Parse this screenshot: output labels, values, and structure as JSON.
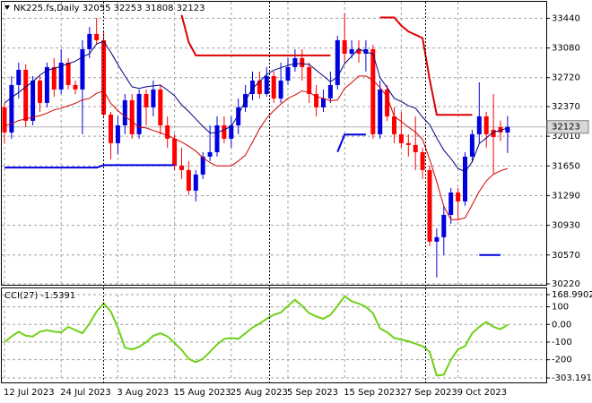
{
  "chart_data": [
    {
      "type": "candlestick",
      "title": "NK225.fs,Daily 32055 32253 31808 32123",
      "categories": [
        "12 Jul 2023",
        null,
        null,
        null,
        null,
        null,
        null,
        null,
        "24 Jul 2023",
        null,
        null,
        null,
        null,
        null,
        null,
        null,
        "3 Aug 2023",
        null,
        null,
        null,
        null,
        null,
        null,
        null,
        "15 Aug 2023",
        null,
        null,
        null,
        null,
        null,
        null,
        null,
        "25 Aug 2023",
        null,
        null,
        null,
        null,
        null,
        null,
        null,
        "5 Sep 2023",
        null,
        null,
        null,
        null,
        null,
        null,
        null,
        "15 Sep 2023",
        null,
        null,
        null,
        null,
        null,
        null,
        null,
        "27 Sep 2023",
        null,
        null,
        null,
        null,
        null,
        null,
        null,
        "9 Oct 2023",
        null,
        null,
        null,
        null,
        null,
        null,
        null
      ],
      "open": [
        32360,
        32056,
        32631,
        32815,
        32197,
        32685,
        32414,
        32848,
        32577,
        32902,
        32631,
        32577,
        33065,
        33250,
        33174,
        32273,
        31926,
        32142,
        32446,
        32034,
        32522,
        32360,
        32577,
        32142,
        31980,
        31654,
        31600,
        31350,
        31546,
        31763,
        31817,
        32142,
        31980,
        32142,
        32360,
        32522,
        32685,
        32522,
        32739,
        32468,
        32685,
        32848,
        32957,
        32848,
        32522,
        32360,
        32468,
        32631,
        33174,
        33011,
        33065,
        33011,
        33065,
        32034,
        32577,
        32251,
        32034,
        31926,
        31904,
        31817,
        31600,
        30732,
        30786,
        31057,
        31328,
        31220,
        31763,
        32034,
        32251,
        32088,
        32120,
        32055
      ],
      "high": [
        32414,
        32739,
        32902,
        32881,
        32739,
        32739,
        32902,
        32957,
        33065,
        32957,
        32685,
        33174,
        33336,
        33445,
        33282,
        32305,
        32251,
        32522,
        32522,
        32577,
        32577,
        32685,
        32631,
        32251,
        32034,
        31871,
        31708,
        31600,
        31817,
        32142,
        32251,
        32251,
        32251,
        32468,
        32631,
        32794,
        32794,
        32848,
        32794,
        32902,
        32957,
        33065,
        33065,
        32902,
        32631,
        32577,
        32794,
        33228,
        33499,
        33174,
        33174,
        33174,
        33119,
        32685,
        32631,
        32360,
        32305,
        32034,
        32251,
        31871,
        31654,
        30894,
        31166,
        31383,
        31383,
        31817,
        32088,
        32663,
        32305,
        32522,
        32200,
        32253
      ],
      "low": [
        31926,
        31980,
        32468,
        32121,
        32142,
        32305,
        32360,
        32490,
        32522,
        32577,
        32522,
        32034,
        32957,
        33119,
        32251,
        31730,
        31795,
        32034,
        31980,
        31980,
        32142,
        32251,
        32034,
        31871,
        31600,
        31491,
        31296,
        31220,
        31491,
        31708,
        31763,
        31926,
        31871,
        32034,
        32305,
        32446,
        32468,
        32490,
        32414,
        32414,
        32631,
        32794,
        32685,
        32414,
        32251,
        32305,
        32414,
        32577,
        32902,
        32957,
        32902,
        32794,
        31980,
        31980,
        32197,
        31926,
        31871,
        31763,
        31600,
        31491,
        30677,
        30297,
        30568,
        30949,
        31003,
        31166,
        31708,
        31926,
        31871,
        31546,
        31950,
        31808
      ],
      "close": [
        32056,
        32631,
        32815,
        32197,
        32685,
        32414,
        32848,
        32577,
        32902,
        32631,
        32577,
        33065,
        33250,
        33174,
        32273,
        31926,
        32142,
        32446,
        32034,
        32522,
        32360,
        32577,
        32142,
        31980,
        31654,
        31600,
        31350,
        31546,
        31763,
        31817,
        32142,
        31980,
        32142,
        32360,
        32522,
        32685,
        32522,
        32739,
        32468,
        32685,
        32848,
        32957,
        32848,
        32522,
        32360,
        32468,
        32631,
        33174,
        33011,
        33065,
        33011,
        33065,
        32034,
        32577,
        32251,
        32034,
        31926,
        31904,
        31817,
        31600,
        30732,
        30786,
        31057,
        31328,
        31220,
        31763,
        32034,
        32251,
        32034,
        32000,
        32055,
        32123
      ],
      "up_color": "#0000e0",
      "down_color": "#ff0000",
      "ma_lines": [
        {
          "color": "#00007f",
          "values": [
            32410,
            32480,
            32540,
            32610,
            32670,
            32750,
            32810,
            32830,
            32860,
            32890,
            32920,
            32970,
            33010,
            33130,
            33160,
            33030,
            32880,
            32740,
            32610,
            32590,
            32610,
            32620,
            32630,
            32570,
            32500,
            32390,
            32310,
            32220,
            32130,
            32050,
            32050,
            32090,
            32130,
            32270,
            32440,
            32590,
            32670,
            32760,
            32810,
            32840,
            32870,
            32890,
            32890,
            32880,
            32810,
            32740,
            32670,
            32730,
            32890,
            32980,
            33070,
            33030,
            33010,
            32720,
            32600,
            32470,
            32430,
            32380,
            32350,
            32240,
            32150,
            31990,
            31840,
            31740,
            31620,
            31580,
            31700,
            31920,
            31990,
            32060,
            32080,
            32110
          ]
        },
        {
          "color": "#d40000",
          "values": [
            32140,
            32160,
            32200,
            32220,
            32240,
            32260,
            32290,
            32330,
            32350,
            32380,
            32410,
            32450,
            32470,
            32530,
            32560,
            32410,
            32320,
            32250,
            32190,
            32120,
            32110,
            32080,
            32050,
            32020,
            31980,
            31940,
            31890,
            31830,
            31750,
            31690,
            31650,
            31650,
            31650,
            31710,
            31780,
            31940,
            32100,
            32230,
            32320,
            32400,
            32470,
            32510,
            32560,
            32540,
            32490,
            32470,
            32440,
            32450,
            32590,
            32660,
            32740,
            32740,
            32690,
            32600,
            32490,
            32250,
            32190,
            32120,
            32060,
            31970,
            31730,
            31460,
            31160,
            31000,
            31000,
            31020,
            31180,
            31340,
            31470,
            31550,
            31590,
            31620
          ]
        }
      ],
      "step_lines": [
        {
          "color": "#e00000",
          "values": [
            null,
            null,
            null,
            null,
            null,
            null,
            null,
            null,
            null,
            null,
            null,
            null,
            null,
            null,
            null,
            null,
            null,
            null,
            null,
            null,
            null,
            null,
            null,
            null,
            null,
            33480,
            33150,
            32990,
            32990,
            32990,
            32990,
            32990,
            32990,
            32990,
            32990,
            32990,
            32990,
            32990,
            32990,
            32990,
            32990,
            32990,
            32990,
            32990,
            32990,
            32990,
            32990,
            null,
            null,
            null,
            null,
            null,
            null,
            33450,
            33450,
            33450,
            33350,
            33280,
            33240,
            33200,
            32700,
            32270,
            32270,
            32270,
            32270,
            32270,
            32270,
            null,
            null,
            null,
            null,
            null
          ]
        },
        {
          "color": "#0000e0",
          "values": [
            31630,
            31630,
            31630,
            31630,
            31630,
            31630,
            31630,
            31630,
            31630,
            31630,
            31630,
            31630,
            31630,
            31630,
            31660,
            31660,
            31660,
            31660,
            31660,
            31660,
            31660,
            31660,
            31660,
            31660,
            31660,
            null,
            null,
            null,
            null,
            null,
            null,
            null,
            null,
            null,
            null,
            null,
            null,
            null,
            null,
            null,
            null,
            null,
            null,
            null,
            null,
            null,
            null,
            31820,
            32030,
            32030,
            32030,
            32030,
            null,
            null,
            null,
            null,
            null,
            null,
            null,
            null,
            null,
            null,
            null,
            null,
            null,
            null,
            null,
            30570,
            30570,
            30570,
            30570,
            null
          ]
        }
      ],
      "current_price": 32123,
      "ylim": [
        30220,
        33640
      ],
      "yticks": [
        33440,
        33080,
        32720,
        32370,
        32010,
        31650,
        31290,
        30930,
        30570,
        30220
      ],
      "grid": true
    },
    {
      "type": "line",
      "title": "CCI(27) -1.5391",
      "color": "#70d01a",
      "values": [
        -100,
        -68,
        -41,
        -64,
        -68,
        -41,
        -32,
        -41,
        -45,
        -14,
        -32,
        -50,
        5,
        73,
        120,
        73,
        -18,
        -132,
        -141,
        -127,
        -100,
        -64,
        -50,
        -68,
        -105,
        -145,
        -195,
        -214,
        -195,
        -155,
        -114,
        -82,
        -77,
        -82,
        -50,
        -18,
        5,
        32,
        55,
        68,
        105,
        140,
        105,
        64,
        45,
        32,
        55,
        105,
        160,
        132,
        118,
        100,
        64,
        -23,
        -45,
        -77,
        -86,
        -95,
        -109,
        -123,
        -155,
        -290,
        -285,
        -200,
        -141,
        -123,
        -50,
        -14,
        14,
        -14,
        -27,
        -1.5391
      ],
      "ylim": [
        -303.191,
        168.9902
      ],
      "yticks": [
        168.9902,
        100,
        {
          "value": 0,
          "label": "0.00"
        },
        -100,
        -200,
        -303.191
      ],
      "grid": true
    }
  ]
}
